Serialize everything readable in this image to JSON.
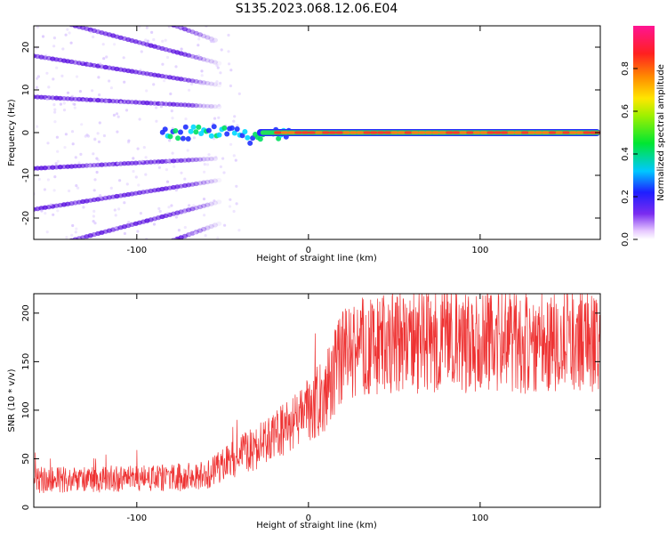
{
  "figure_title": "S135.2023.068.12.06.E04",
  "chart_data": [
    {
      "type": "heatmap",
      "xlabel": "Height of straight line (km)",
      "ylabel": "Frequency (Hz)",
      "xlim": [
        -160,
        170
      ],
      "ylim": [
        -25,
        25
      ],
      "x_ticks": [
        -100,
        0,
        100
      ],
      "y_ticks": [
        -20,
        -10,
        0,
        10,
        20
      ],
      "colorbar": {
        "label": "Normalized spectral amplitude",
        "range": [
          0,
          1
        ],
        "ticks": [
          "0.0",
          "0.2",
          "0.4",
          "0.6",
          "0.8"
        ],
        "colormap": "rainbow (violet-blue-cyan-green-yellow-orange-red-pink)"
      },
      "features": [
        {
          "name": "central line",
          "x_range": [
            -85,
            170
          ],
          "frequency_hz": 0,
          "amplitude": "~0.9 for x>-20, noisy 0.2-0.6 for x<-20"
        },
        {
          "name": "Doppler diagonal bands",
          "x_range": [
            -160,
            -50
          ],
          "spacing_hz": 5,
          "note": "slanted lines fanning out toward negative height"
        }
      ]
    },
    {
      "type": "line",
      "xlabel": "Height of straight line (km)",
      "ylabel": "SNR (10 * v/v)",
      "xlim": [
        -160,
        170
      ],
      "ylim": [
        0,
        220
      ],
      "x_ticks": [
        -100,
        0,
        100
      ],
      "y_ticks": [
        0,
        50,
        100,
        150,
        200
      ],
      "line_color": "#ee3333",
      "trend": {
        "x": [
          -160,
          -120,
          -80,
          -60,
          -50,
          -40,
          -30,
          -20,
          -10,
          0,
          10,
          20,
          30,
          60,
          100,
          140,
          170
        ],
        "y": [
          28,
          28,
          30,
          33,
          42,
          55,
          62,
          72,
          85,
          100,
          118,
          155,
          165,
          170,
          172,
          170,
          172
        ]
      }
    }
  ]
}
